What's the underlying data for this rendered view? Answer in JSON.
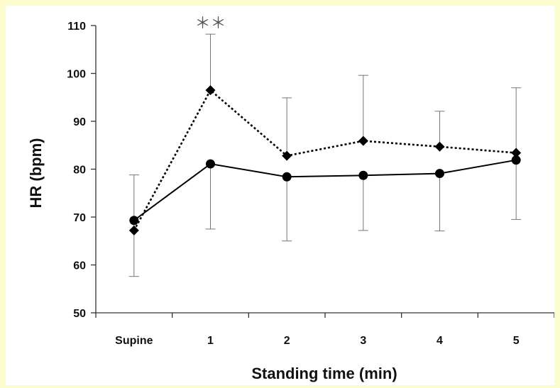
{
  "chart_data": {
    "type": "line",
    "xlabel": "Standing time (min)",
    "ylabel": "HR (bpm)",
    "categories": [
      "Supine",
      "1",
      "2",
      "3",
      "4",
      "5"
    ],
    "ylim": [
      50,
      110
    ],
    "yticks": [
      "50",
      "60",
      "70",
      "80",
      "90",
      "100",
      "110"
    ],
    "grid": false,
    "series": [
      {
        "marker": "diamond",
        "line_style": "dotted",
        "color": "#000000",
        "values": [
          67.2,
          96.5,
          82.8,
          85.9,
          84.7,
          83.4
        ],
        "error_upper": [
          78.8,
          108.2,
          94.9,
          99.6,
          92.1,
          97.0
        ]
      },
      {
        "marker": "circle",
        "line_style": "solid",
        "color": "#000000",
        "values": [
          69.3,
          81.1,
          78.4,
          78.7,
          79.1,
          81.9
        ],
        "error_lower": [
          57.6,
          67.5,
          65.0,
          67.2,
          67.1,
          69.5
        ]
      }
    ],
    "annotations": [
      {
        "category": "1",
        "y": 110.3,
        "text": "＊＊"
      }
    ]
  }
}
